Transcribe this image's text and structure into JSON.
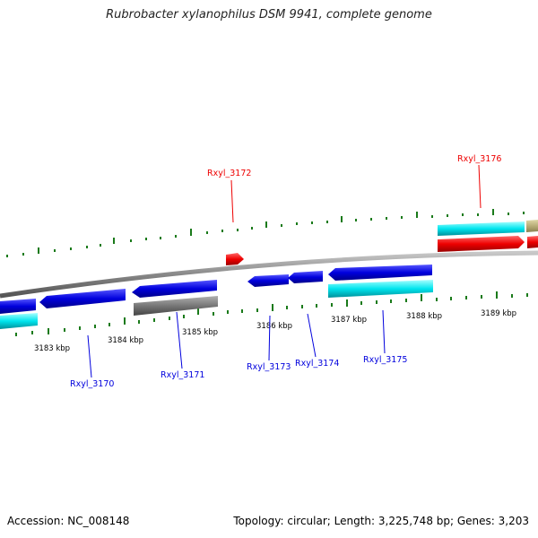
{
  "title": "Rubrobacter xylanophilus DSM 9941, complete genome",
  "footer": {
    "accession": "Accession: NC_008148",
    "topology": "Topology: circular; Length: 3,225,748 bp; Genes: 3,203"
  },
  "scale_labels": [
    "3183 kbp",
    "3184 kbp",
    "3185 kbp",
    "3186 kbp",
    "3187 kbp",
    "3188 kbp",
    "3189 kbp"
  ],
  "genes": [
    {
      "id": "Rxyl_3170",
      "strand": "reverse",
      "color": "#0000dd"
    },
    {
      "id": "Rxyl_3171",
      "strand": "reverse",
      "color": "#0000dd"
    },
    {
      "id": "Rxyl_3172",
      "strand": "forward",
      "color": "#ee0000"
    },
    {
      "id": "Rxyl_3173",
      "strand": "reverse",
      "color": "#0000dd"
    },
    {
      "id": "Rxyl_3174",
      "strand": "reverse",
      "color": "#0000dd"
    },
    {
      "id": "Rxyl_3175",
      "strand": "reverse",
      "color": "#0000dd"
    },
    {
      "id": "Rxyl_3176",
      "strand": "forward",
      "color": "#ee0000"
    }
  ],
  "colors": {
    "backbone": "#888888",
    "ticks": "#1a7a1a",
    "forward_gene": "#ee0000",
    "reverse_gene": "#0000dd",
    "cyan_feature": "#00e5ee",
    "gray_feature": "#777777",
    "tan_feature": "#b8ad78"
  }
}
